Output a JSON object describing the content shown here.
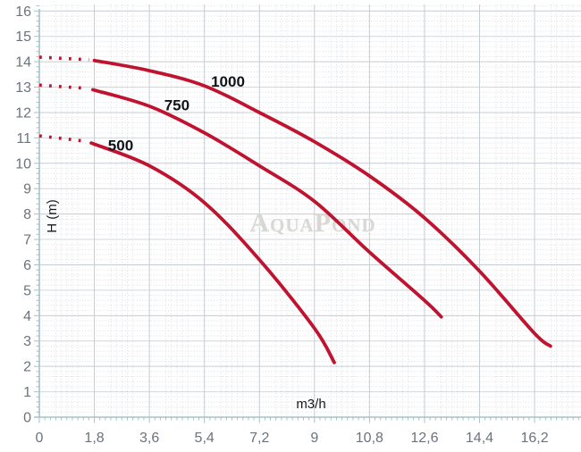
{
  "chart_data": {
    "type": "line",
    "title": "",
    "xlabel": "m3/h",
    "ylabel": "H (m)",
    "watermark": "AquaPond",
    "xlim": [
      0,
      17.7
    ],
    "ylim": [
      0,
      16.26
    ],
    "grid": "fine dotted minor grid with solid major lines",
    "legend_position": "labels on curves",
    "x_ticks": [
      0,
      1.8,
      3.6,
      5.4,
      7.2,
      9,
      10.8,
      12.6,
      14.4,
      16.2
    ],
    "x_tick_labels": [
      "0",
      "1,8",
      "3,6",
      "5,4",
      "7,2",
      "9",
      "10,8",
      "12,6",
      "14,4",
      "16,2"
    ],
    "y_ticks": [
      0,
      1,
      2,
      3,
      4,
      5,
      6,
      7,
      8,
      9,
      10,
      11,
      12,
      13,
      14,
      15,
      16
    ],
    "y_tick_labels": [
      "0",
      "1",
      "2",
      "3",
      "4",
      "5",
      "6",
      "7",
      "8",
      "9",
      "10",
      "11",
      "12",
      "13",
      "14",
      "15",
      "16"
    ],
    "x_minor_step": 0.18,
    "y_minor_step": 0.2,
    "series": [
      {
        "name": "1000",
        "label_pos": {
          "x": 6.17,
          "y": 13.23
        },
        "dotted_lead": [
          [
            0,
            14.18
          ],
          [
            1.62,
            14.08
          ]
        ],
        "points": [
          [
            1.8,
            14.05
          ],
          [
            3.6,
            13.65
          ],
          [
            5.4,
            13.05
          ],
          [
            7.2,
            12.0
          ],
          [
            9,
            10.85
          ],
          [
            10.8,
            9.5
          ],
          [
            12.6,
            7.85
          ],
          [
            14.4,
            5.75
          ],
          [
            16.2,
            3.3
          ],
          [
            16.72,
            2.8
          ]
        ]
      },
      {
        "name": "750",
        "label_pos": {
          "x": 4.5,
          "y": 12.3
        },
        "dotted_lead": [
          [
            0,
            13.08
          ],
          [
            1.57,
            12.95
          ]
        ],
        "points": [
          [
            1.75,
            12.9
          ],
          [
            3.6,
            12.25
          ],
          [
            5.4,
            11.2
          ],
          [
            7.2,
            9.9
          ],
          [
            9,
            8.5
          ],
          [
            10.8,
            6.5
          ],
          [
            12.6,
            4.6
          ],
          [
            13.15,
            3.95
          ]
        ]
      },
      {
        "name": "500",
        "label_pos": {
          "x": 2.66,
          "y": 10.72
        },
        "dotted_lead": [
          [
            0,
            11.08
          ],
          [
            1.52,
            10.87
          ]
        ],
        "points": [
          [
            1.7,
            10.8
          ],
          [
            3.6,
            9.9
          ],
          [
            5.4,
            8.45
          ],
          [
            7.2,
            6.2
          ],
          [
            9,
            3.5
          ],
          [
            9.65,
            2.15
          ]
        ]
      }
    ],
    "colors": {
      "curve": "#c01330",
      "curve_label": "#111418",
      "axis": "#a5c2c9",
      "tick_label": "#6b737d",
      "grid_major_v": "#c6ccd3",
      "grid_major_h": "#d2d6db",
      "grid_major_h_even": "#c6ccd3",
      "grid_minor": "#dbdee2",
      "watermark": "#d9d8d5",
      "background": "#ffffff"
    }
  }
}
